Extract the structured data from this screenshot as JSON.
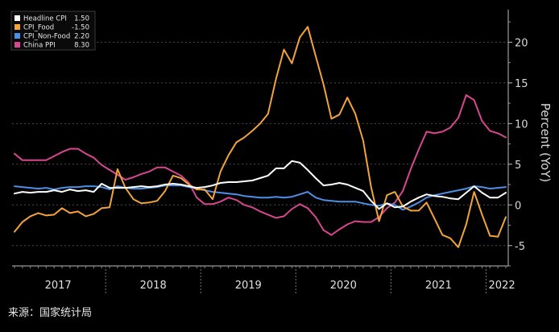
{
  "chart_data": {
    "type": "line",
    "title": "",
    "xlabel": "",
    "ylabel": "Percent (YoY)",
    "ylim": [
      -7.5,
      24
    ],
    "yticks": [
      -5,
      0,
      5,
      10,
      15,
      20
    ],
    "x_start": "2017-01",
    "x_end": "2022-03",
    "year_labels": [
      {
        "label": "2017",
        "mid": 5.5
      },
      {
        "label": "2018",
        "mid": 17.5
      },
      {
        "label": "2019",
        "mid": 29.5
      },
      {
        "label": "2020",
        "mid": 41.5
      },
      {
        "label": "2021",
        "mid": 53.5
      },
      {
        "label": "2022",
        "mid": 61.5
      }
    ],
    "series": [
      {
        "name": "Headline CPI",
        "last_value": "1.50",
        "color": "#ffffff",
        "values": [
          1.4,
          1.6,
          1.5,
          1.6,
          1.6,
          1.8,
          1.6,
          1.9,
          1.7,
          1.8,
          1.6,
          2.6,
          2.1,
          2.1,
          2.1,
          2.2,
          2.3,
          2.2,
          2.3,
          2.5,
          2.6,
          2.5,
          2.3,
          2.1,
          2.2,
          2.4,
          2.7,
          2.8,
          2.8,
          2.9,
          3.0,
          3.3,
          3.6,
          4.5,
          4.5,
          5.4,
          5.2,
          4.3,
          3.3,
          2.4,
          2.5,
          2.7,
          2.5,
          2.1,
          1.7,
          0.5,
          -0.5,
          0.2,
          -0.3,
          -0.2,
          0.4,
          0.9,
          1.3,
          1.1,
          1.0,
          0.8,
          0.7,
          1.5,
          2.3,
          1.5,
          0.9,
          0.9,
          1.5
        ]
      },
      {
        "name": "CPI_Food",
        "last_value": "-1.50",
        "color": "#f2a33a",
        "values": [
          -3.3,
          -2.1,
          -1.4,
          -1.0,
          -1.3,
          -1.2,
          -0.4,
          -1.0,
          -0.8,
          -1.4,
          -1.1,
          -0.4,
          -0.3,
          4.4,
          2.1,
          0.7,
          0.2,
          0.3,
          0.5,
          1.7,
          3.6,
          3.3,
          2.5,
          1.9,
          1.9,
          0.7,
          4.1,
          6.1,
          7.7,
          8.3,
          9.1,
          10.0,
          11.2,
          15.5,
          19.1,
          17.4,
          20.6,
          21.9,
          18.3,
          14.8,
          10.6,
          11.1,
          13.2,
          11.2,
          7.9,
          2.2,
          -2.0,
          1.2,
          1.6,
          -0.2,
          -0.7,
          -0.7,
          0.3,
          -1.7,
          -3.7,
          -4.1,
          -5.2,
          -2.4,
          1.6,
          -1.2,
          -3.8,
          -3.9,
          -1.5
        ]
      },
      {
        "name": "CPI_Non-Food",
        "last_value": "2.20",
        "color": "#4d8fe6",
        "values": [
          2.3,
          2.2,
          2.1,
          2.0,
          2.1,
          1.9,
          2.1,
          2.2,
          2.2,
          2.3,
          2.3,
          2.2,
          1.9,
          2.3,
          2.1,
          2.0,
          2.0,
          2.1,
          2.2,
          2.4,
          2.4,
          2.4,
          2.2,
          2.0,
          1.8,
          1.6,
          1.5,
          1.4,
          1.3,
          1.1,
          1.0,
          0.9,
          0.9,
          1.0,
          0.9,
          1.0,
          1.3,
          1.6,
          0.9,
          0.6,
          0.5,
          0.4,
          0.4,
          0.4,
          0.2,
          0.0,
          -0.1,
          0.2,
          0.0,
          -0.6,
          -0.2,
          0.3,
          0.9,
          1.2,
          1.4,
          1.6,
          1.8,
          2.0,
          2.3,
          2.2,
          2.0,
          2.1,
          2.2
        ]
      },
      {
        "name": "China PPI",
        "last_value": "8.30",
        "color": "#d6478f",
        "values": [
          6.3,
          5.5,
          5.5,
          5.5,
          5.5,
          6.0,
          6.5,
          6.9,
          6.9,
          6.3,
          5.8,
          4.9,
          4.3,
          3.7,
          3.1,
          3.4,
          3.8,
          4.1,
          4.6,
          4.6,
          4.1,
          3.6,
          2.7,
          0.9,
          0.1,
          0.1,
          0.4,
          0.9,
          0.6,
          0.0,
          -0.3,
          -0.8,
          -1.2,
          -1.6,
          -1.4,
          -0.5,
          0.1,
          -0.4,
          -1.5,
          -3.1,
          -3.7,
          -3.0,
          -2.4,
          -2.0,
          -2.1,
          -2.1,
          -1.5,
          -0.4,
          0.3,
          1.7,
          4.4,
          6.8,
          9.0,
          8.8,
          9.0,
          9.5,
          10.7,
          13.5,
          12.9,
          10.3,
          9.1,
          8.8,
          8.3
        ]
      }
    ]
  },
  "source_text": "来源：国家统计局"
}
